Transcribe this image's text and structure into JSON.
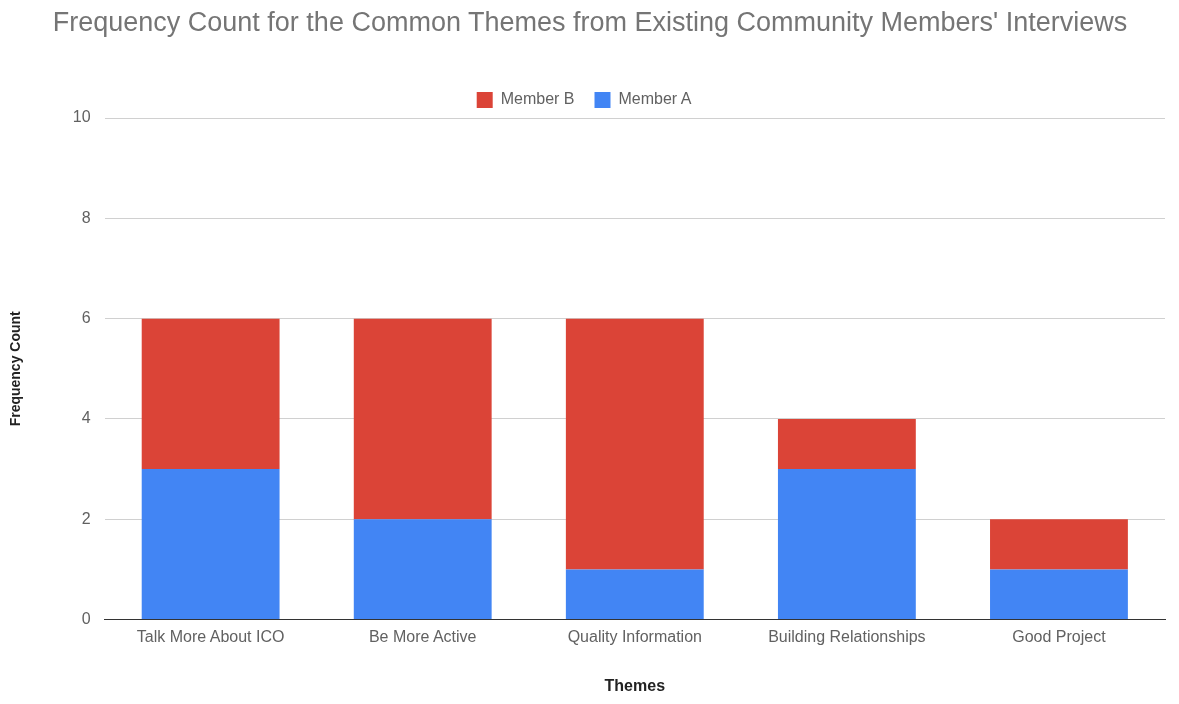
{
  "chart_data": {
    "type": "bar",
    "title": "Frequency Count for the Common Themes from Existing Community Members' Interviews",
    "xlabel": "Themes",
    "ylabel": "Frequency Count",
    "categories": [
      "Talk More About ICO",
      "Be More Active",
      "Quality Information",
      "Building Relationships",
      "Good Project"
    ],
    "series": [
      {
        "name": "Member A",
        "color": "#4285f4",
        "values": [
          3,
          2,
          1,
          3,
          1
        ]
      },
      {
        "name": "Member B",
        "color": "#db4437",
        "values": [
          3,
          4,
          5,
          1,
          1
        ]
      }
    ],
    "stacked": true,
    "ylim": [
      0,
      10
    ],
    "yticks": [
      0,
      2,
      4,
      6,
      8,
      10
    ],
    "grid": "y",
    "legend": "top"
  }
}
